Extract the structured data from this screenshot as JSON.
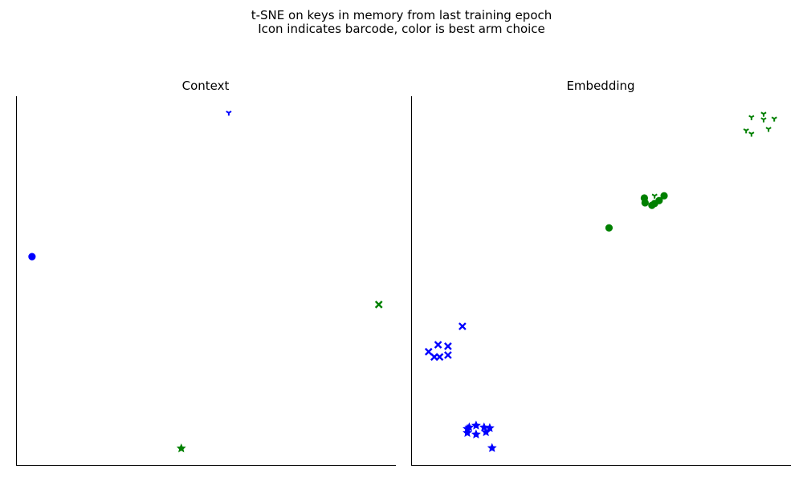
{
  "chart_data": {
    "title": "t-SNE on keys in memory from last training epoch",
    "subtitle": "Icon indicates barcode, color is best arm choice",
    "type": "scatter",
    "colors": {
      "blue": "#0000ff",
      "green": "#008000"
    },
    "panels": [
      {
        "title": "Context",
        "xlim": [
          0,
          100
        ],
        "ylim": [
          0,
          100
        ],
        "points": [
          {
            "x": 56,
            "y": 95.5,
            "marker": "tri_down",
            "color": "blue"
          },
          {
            "x": 4.2,
            "y": 56.5,
            "marker": "circle",
            "color": "blue"
          },
          {
            "x": 95.5,
            "y": 43.5,
            "marker": "x",
            "color": "green"
          },
          {
            "x": 43.5,
            "y": 4.5,
            "marker": "star",
            "color": "green"
          }
        ]
      },
      {
        "title": "Embedding",
        "xlim": [
          0,
          100
        ],
        "ylim": [
          0,
          100
        ],
        "points": [
          {
            "x": 89.6,
            "y": 94.3,
            "marker": "tri_down",
            "color": "green"
          },
          {
            "x": 92.8,
            "y": 95.2,
            "marker": "tri_down",
            "color": "green"
          },
          {
            "x": 95.6,
            "y": 93.9,
            "marker": "tri_down",
            "color": "green"
          },
          {
            "x": 92.8,
            "y": 93.7,
            "marker": "tri_down",
            "color": "green"
          },
          {
            "x": 88.2,
            "y": 90.7,
            "marker": "tri_down",
            "color": "green"
          },
          {
            "x": 89.6,
            "y": 89.8,
            "marker": "tri_down",
            "color": "green"
          },
          {
            "x": 94.1,
            "y": 91.1,
            "marker": "tri_down",
            "color": "green"
          },
          {
            "x": 64.1,
            "y": 73.0,
            "marker": "tri_down",
            "color": "green"
          },
          {
            "x": 61.4,
            "y": 72.4,
            "marker": "circle",
            "color": "green"
          },
          {
            "x": 64.1,
            "y": 70.9,
            "marker": "circle",
            "color": "green"
          },
          {
            "x": 66.6,
            "y": 73.0,
            "marker": "circle",
            "color": "green"
          },
          {
            "x": 63.4,
            "y": 70.4,
            "marker": "circle",
            "color": "green"
          },
          {
            "x": 61.6,
            "y": 71.1,
            "marker": "circle",
            "color": "green"
          },
          {
            "x": 65.3,
            "y": 71.7,
            "marker": "circle",
            "color": "green"
          },
          {
            "x": 52.1,
            "y": 64.3,
            "marker": "circle",
            "color": "green"
          },
          {
            "x": 13.5,
            "y": 37.6,
            "marker": "x",
            "color": "blue"
          },
          {
            "x": 7.1,
            "y": 32.6,
            "marker": "x",
            "color": "blue"
          },
          {
            "x": 9.7,
            "y": 32.2,
            "marker": "x",
            "color": "blue"
          },
          {
            "x": 4.6,
            "y": 30.7,
            "marker": "x",
            "color": "blue"
          },
          {
            "x": 6.1,
            "y": 29.3,
            "marker": "x",
            "color": "blue"
          },
          {
            "x": 7.5,
            "y": 29.3,
            "marker": "x",
            "color": "blue"
          },
          {
            "x": 9.7,
            "y": 29.8,
            "marker": "x",
            "color": "blue"
          },
          {
            "x": 14.8,
            "y": 9.8,
            "marker": "star",
            "color": "blue"
          },
          {
            "x": 15.3,
            "y": 10.2,
            "marker": "star",
            "color": "blue"
          },
          {
            "x": 17.1,
            "y": 10.7,
            "marker": "star",
            "color": "blue"
          },
          {
            "x": 19.2,
            "y": 10.2,
            "marker": "star",
            "color": "blue"
          },
          {
            "x": 14.8,
            "y": 8.7,
            "marker": "star",
            "color": "blue"
          },
          {
            "x": 17.1,
            "y": 8.3,
            "marker": "star",
            "color": "blue"
          },
          {
            "x": 19.7,
            "y": 8.9,
            "marker": "star",
            "color": "blue"
          },
          {
            "x": 20.7,
            "y": 10.0,
            "marker": "star",
            "color": "blue"
          },
          {
            "x": 21.3,
            "y": 4.6,
            "marker": "star",
            "color": "blue"
          }
        ]
      }
    ]
  }
}
